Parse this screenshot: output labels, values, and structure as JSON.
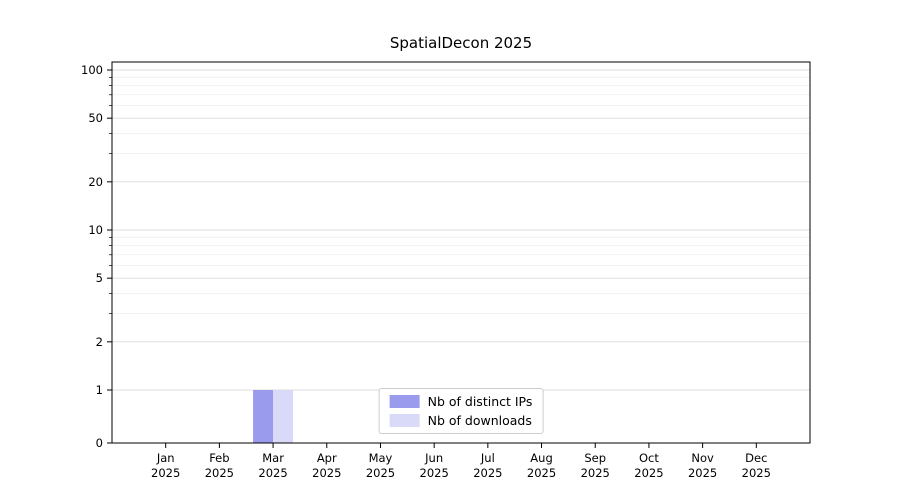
{
  "chart_data": {
    "type": "bar",
    "title": "SpatialDecon 2025",
    "x_months": [
      "Jan",
      "Feb",
      "Mar",
      "Apr",
      "May",
      "Jun",
      "Jul",
      "Aug",
      "Sep",
      "Oct",
      "Nov",
      "Dec"
    ],
    "x_year": "2025",
    "y_ticks": [
      0,
      1,
      2,
      5,
      10,
      20,
      50,
      100
    ],
    "y_scale": "symlog (linear below 1, log above)",
    "ylim": [
      0,
      110
    ],
    "grid": true,
    "legend_position": "lower center",
    "series": [
      {
        "name": "Nb of distinct IPs",
        "color": "#9b9bee",
        "values": [
          0,
          0,
          1,
          0,
          0,
          0,
          0,
          0,
          0,
          0,
          0,
          0
        ]
      },
      {
        "name": "Nb of downloads",
        "color": "#d9d9f8",
        "values": [
          0,
          0,
          1,
          0,
          0,
          0,
          0,
          0,
          0,
          0,
          0,
          0
        ]
      }
    ]
  }
}
